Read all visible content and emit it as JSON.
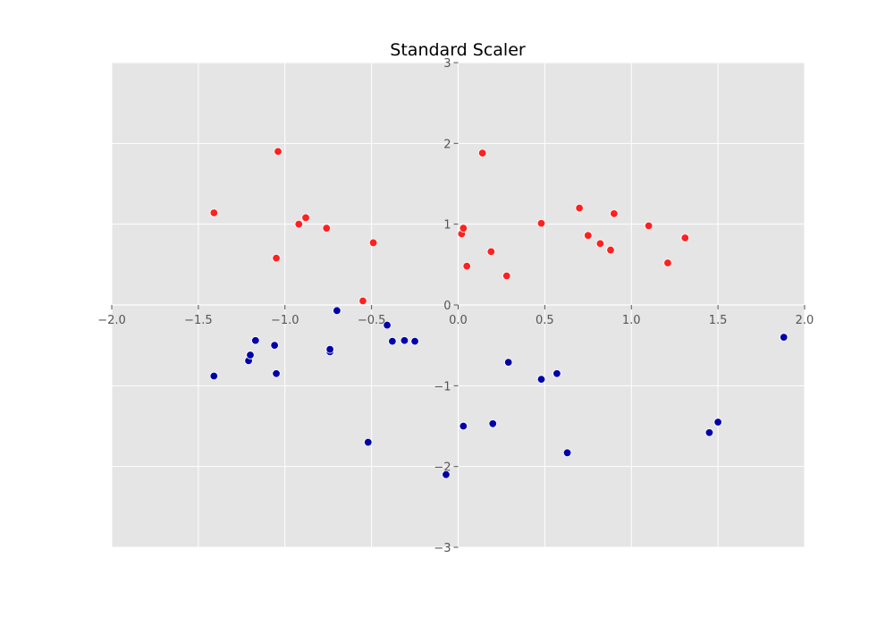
{
  "chart_data": {
    "type": "scatter",
    "title": "Standard Scaler",
    "xlabel": "",
    "ylabel": "",
    "xlim": [
      -2.0,
      2.0
    ],
    "ylim": [
      -3,
      3
    ],
    "x_ticks": [
      "-2.0",
      "-1.5",
      "-1.0",
      "-0.5",
      "0.0",
      "0.5",
      "1.0",
      "1.5",
      "2.0"
    ],
    "y_ticks": [
      "3",
      "2",
      "1",
      "0",
      "-1",
      "-2",
      "-3"
    ],
    "grid": true,
    "spines": "centered at origin",
    "background": "#e5e5e5",
    "series": [
      {
        "color": "#ff2020",
        "points": [
          {
            "x": -1.41,
            "y": 1.14
          },
          {
            "x": -1.04,
            "y": 1.9
          },
          {
            "x": -1.05,
            "y": 0.58
          },
          {
            "x": -0.92,
            "y": 1.0
          },
          {
            "x": -0.88,
            "y": 1.08
          },
          {
            "x": -0.76,
            "y": 0.95
          },
          {
            "x": -0.55,
            "y": 0.05
          },
          {
            "x": -0.49,
            "y": 0.77
          },
          {
            "x": 0.02,
            "y": 0.88
          },
          {
            "x": 0.03,
            "y": 0.95
          },
          {
            "x": 0.05,
            "y": 0.48
          },
          {
            "x": 0.14,
            "y": 1.88
          },
          {
            "x": 0.19,
            "y": 0.66
          },
          {
            "x": 0.28,
            "y": 0.36
          },
          {
            "x": 0.48,
            "y": 1.01
          },
          {
            "x": 0.7,
            "y": 1.2
          },
          {
            "x": 0.75,
            "y": 0.86
          },
          {
            "x": 0.82,
            "y": 0.76
          },
          {
            "x": 0.88,
            "y": 0.68
          },
          {
            "x": 0.9,
            "y": 1.13
          },
          {
            "x": 1.1,
            "y": 0.98
          },
          {
            "x": 1.21,
            "y": 0.52
          },
          {
            "x": 1.31,
            "y": 0.83
          }
        ]
      },
      {
        "color": "#0000a8",
        "points": [
          {
            "x": -1.41,
            "y": -0.88
          },
          {
            "x": -1.21,
            "y": -0.69
          },
          {
            "x": -1.2,
            "y": -0.62
          },
          {
            "x": -1.17,
            "y": -0.44
          },
          {
            "x": -1.06,
            "y": -0.5
          },
          {
            "x": -1.05,
            "y": -0.85
          },
          {
            "x": -0.74,
            "y": -0.58
          },
          {
            "x": -0.74,
            "y": -0.55
          },
          {
            "x": -0.7,
            "y": -0.07
          },
          {
            "x": -0.52,
            "y": -1.7
          },
          {
            "x": -0.41,
            "y": -0.25
          },
          {
            "x": -0.38,
            "y": -0.45
          },
          {
            "x": -0.31,
            "y": -0.44
          },
          {
            "x": -0.25,
            "y": -0.45
          },
          {
            "x": -0.07,
            "y": -2.1
          },
          {
            "x": 0.03,
            "y": -1.5
          },
          {
            "x": 0.2,
            "y": -1.47
          },
          {
            "x": 0.29,
            "y": -0.71
          },
          {
            "x": 0.48,
            "y": -0.92
          },
          {
            "x": 0.57,
            "y": -0.85
          },
          {
            "x": 0.63,
            "y": -1.83
          },
          {
            "x": 1.45,
            "y": -1.58
          },
          {
            "x": 1.5,
            "y": -1.45
          },
          {
            "x": 1.88,
            "y": -0.4
          }
        ]
      }
    ]
  }
}
